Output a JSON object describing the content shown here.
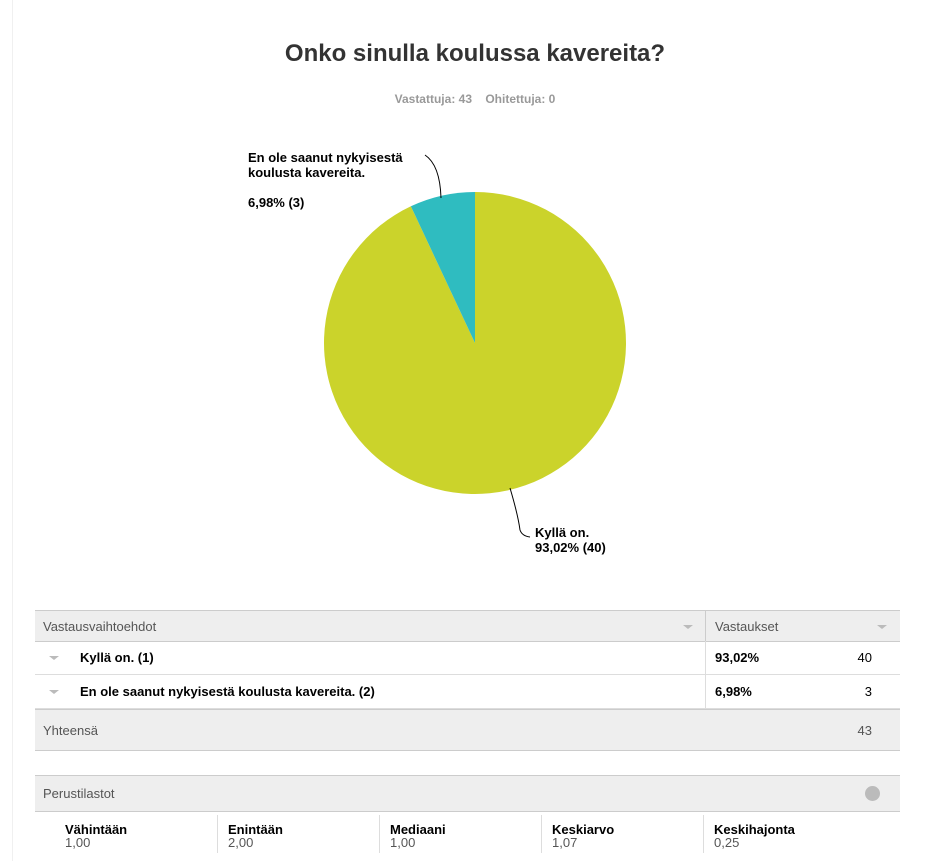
{
  "chart_data": {
    "type": "pie",
    "title": "Onko sinulla koulussa kavereita?",
    "subtitle": [
      "Vastattuja: 43",
      "Ohitettuja: 0"
    ],
    "categories": [
      "Kyllä on.",
      "En ole saanut nykyisestä koulusta kavereita."
    ],
    "values": [
      93.02,
      6.98
    ],
    "value_labels": [
      "93,02% (40)",
      "6,98% (3)"
    ],
    "colors": [
      "#cbd32b",
      "#2fbcc0"
    ]
  },
  "table": {
    "header": [
      "Vastausvaihtoehdot",
      "Vastaukset"
    ],
    "rows": [
      [
        "Kyllä on. (1)",
        "93,02%",
        "40"
      ],
      [
        "En ole saanut nykyisestä koulusta kavereita. (2)",
        "6,98%",
        "3"
      ]
    ],
    "total": [
      "Yhteensä",
      "43"
    ]
  },
  "stats": {
    "title": "Perustilastot",
    "items": [
      [
        "Vähintään",
        "1,00"
      ],
      [
        "Enintään",
        "2,00"
      ],
      [
        "Mediaani",
        "1,00"
      ],
      [
        "Keskiarvo",
        "1,07"
      ],
      [
        "Keskihajonta",
        "0,25"
      ]
    ]
  }
}
